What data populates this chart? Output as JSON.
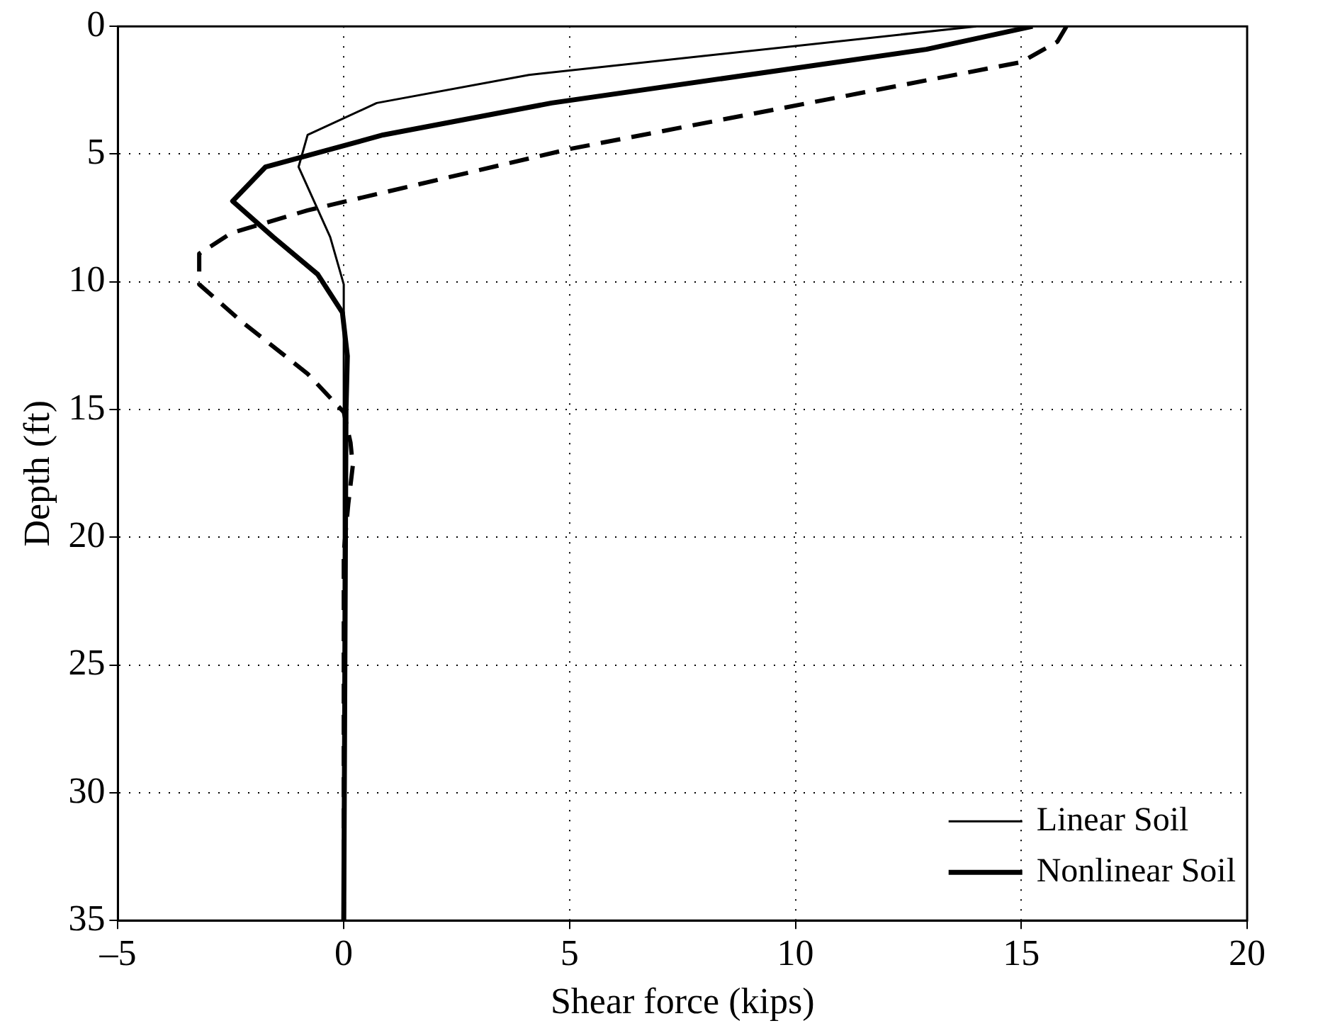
{
  "chart_data": {
    "type": "line",
    "xlabel": "Shear force (kips)",
    "ylabel": "Depth (ft)",
    "xlim": [
      -5,
      20
    ],
    "xticks": [
      {
        "value": -5,
        "label": "–5"
      },
      0,
      5,
      10,
      15,
      20
    ],
    "ylim": [
      35,
      0
    ],
    "yticks": [
      0,
      5,
      10,
      15,
      20,
      25,
      30,
      35
    ],
    "grid": true,
    "legend": "bottom right",
    "marker": "none",
    "series": [
      {
        "name": "Linear Soil",
        "color": "#000000",
        "line_style": "solid",
        "x": [
          14.0,
          4.1,
          0.73,
          -0.8,
          -1.0,
          -0.3,
          0,
          0
        ],
        "values": [
          0,
          1.9,
          3.0,
          4.25,
          5.5,
          8.25,
          10.1,
          35
        ]
      },
      {
        "name": "Nonlinear Soil",
        "color": "#000000",
        "line_style": "solid",
        "x": [
          15.25,
          12.9,
          4.6,
          0.87,
          -1.73,
          -2.46,
          -1.56,
          -0.58,
          -0.03,
          0.08,
          0.05,
          0
        ],
        "values": [
          0,
          0.9,
          3.0,
          4.25,
          5.5,
          6.84,
          8.25,
          9.7,
          11.2,
          12.9,
          15,
          35
        ]
      },
      {
        "color": "#000000",
        "line_style": "dashed",
        "x": [
          16.0,
          15.8,
          15.0,
          5.0,
          -0.8,
          -2.5,
          -3.2,
          -3.2,
          -2.3,
          -0.8,
          0,
          0.15,
          0.2,
          0.1,
          0,
          0
        ],
        "values": [
          0,
          0.6,
          1.4,
          4.8,
          7.2,
          8.1,
          8.9,
          10.1,
          11.5,
          13.6,
          15.1,
          16.3,
          17.2,
          18.7,
          20.6,
          35
        ]
      }
    ]
  }
}
